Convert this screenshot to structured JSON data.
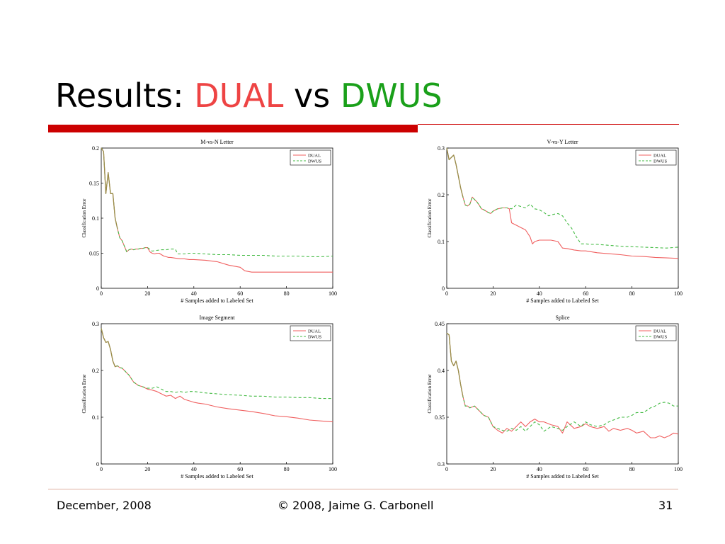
{
  "slide": {
    "title_prefix": "Results: ",
    "title_dual": "DUAL",
    "title_vs": " vs ",
    "title_dwus": "DWUS",
    "title_dual_color": "#ee4444",
    "title_dwus_color": "#1aa01a"
  },
  "footer": {
    "date": "December, 2008",
    "copyright": "© 2008, Jaime G. Carbonell",
    "page": "31"
  },
  "chart_data": [
    {
      "type": "line",
      "title": "M-vs-N Letter",
      "xlabel": "# Samples added to Labeled Set",
      "ylabel": "Classification Error",
      "xlim": [
        0,
        100
      ],
      "ylim": [
        0,
        0.2
      ],
      "xticks": [
        "0",
        "20",
        "40",
        "60",
        "80",
        "100"
      ],
      "yticks": [
        "0",
        "0.05",
        "0.1",
        "0.15",
        "0.2"
      ],
      "legend_position": "top-right",
      "series": [
        {
          "name": "DUAL",
          "color": "#f06060",
          "dash": "solid",
          "x": [
            0,
            1,
            2,
            3,
            4,
            5,
            6,
            7,
            8,
            9,
            10,
            11,
            12,
            13,
            14,
            15,
            16,
            17,
            18,
            19,
            20,
            21,
            22,
            23,
            24,
            25,
            26,
            27,
            28,
            29,
            30,
            32,
            34,
            36,
            38,
            40,
            45,
            50,
            55,
            60,
            62,
            65,
            70,
            75,
            80,
            85,
            90,
            95,
            100
          ],
          "y": [
            0.2,
            0.195,
            0.135,
            0.165,
            0.135,
            0.135,
            0.1,
            0.085,
            0.072,
            0.068,
            0.06,
            0.052,
            0.055,
            0.056,
            0.055,
            0.056,
            0.056,
            0.057,
            0.057,
            0.058,
            0.058,
            0.052,
            0.05,
            0.049,
            0.05,
            0.05,
            0.048,
            0.046,
            0.045,
            0.044,
            0.044,
            0.043,
            0.042,
            0.042,
            0.041,
            0.041,
            0.04,
            0.038,
            0.033,
            0.03,
            0.025,
            0.023,
            0.023,
            0.023,
            0.023,
            0.023,
            0.023,
            0.023,
            0.023
          ]
        },
        {
          "name": "DWUS",
          "color": "#44bb44",
          "dash": "4,3",
          "x": [
            0,
            1,
            2,
            3,
            4,
            5,
            6,
            7,
            8,
            9,
            10,
            11,
            12,
            13,
            14,
            15,
            16,
            17,
            18,
            19,
            20,
            22,
            24,
            26,
            28,
            30,
            32,
            33,
            34,
            36,
            38,
            40,
            45,
            50,
            55,
            60,
            65,
            70,
            75,
            80,
            85,
            90,
            95,
            100
          ],
          "y": [
            0.2,
            0.195,
            0.135,
            0.165,
            0.135,
            0.135,
            0.1,
            0.085,
            0.072,
            0.068,
            0.06,
            0.052,
            0.055,
            0.056,
            0.055,
            0.056,
            0.056,
            0.057,
            0.057,
            0.058,
            0.058,
            0.053,
            0.054,
            0.055,
            0.055,
            0.056,
            0.056,
            0.049,
            0.049,
            0.049,
            0.05,
            0.05,
            0.049,
            0.048,
            0.048,
            0.047,
            0.047,
            0.047,
            0.046,
            0.046,
            0.046,
            0.045,
            0.045,
            0.046
          ]
        }
      ]
    },
    {
      "type": "line",
      "title": "V-vs-Y Letter",
      "xlabel": "# Samples added to Labeled Set",
      "ylabel": "Classification Error",
      "xlim": [
        0,
        100
      ],
      "ylim": [
        0,
        0.3
      ],
      "xticks": [
        "0",
        "20",
        "40",
        "60",
        "80",
        "100"
      ],
      "yticks": [
        "0",
        "0.1",
        "0.2",
        "0.3"
      ],
      "legend_position": "top-right",
      "series": [
        {
          "name": "DUAL",
          "color": "#f06060",
          "dash": "solid",
          "x": [
            0,
            1,
            2,
            3,
            4,
            5,
            6,
            7,
            8,
            9,
            10,
            11,
            12,
            13,
            14,
            15,
            16,
            17,
            18,
            19,
            20,
            22,
            24,
            26,
            27,
            28,
            30,
            32,
            34,
            36,
            37,
            38,
            40,
            42,
            45,
            48,
            50,
            52,
            55,
            58,
            60,
            65,
            70,
            75,
            80,
            85,
            90,
            95,
            100
          ],
          "y": [
            0.3,
            0.275,
            0.28,
            0.285,
            0.265,
            0.24,
            0.215,
            0.195,
            0.178,
            0.176,
            0.18,
            0.195,
            0.19,
            0.185,
            0.178,
            0.17,
            0.168,
            0.165,
            0.162,
            0.16,
            0.165,
            0.17,
            0.172,
            0.172,
            0.17,
            0.14,
            0.135,
            0.13,
            0.125,
            0.11,
            0.095,
            0.1,
            0.103,
            0.103,
            0.103,
            0.1,
            0.086,
            0.085,
            0.082,
            0.08,
            0.08,
            0.076,
            0.074,
            0.072,
            0.069,
            0.068,
            0.066,
            0.065,
            0.064
          ]
        },
        {
          "name": "DWUS",
          "color": "#44bb44",
          "dash": "4,3",
          "x": [
            0,
            1,
            2,
            3,
            4,
            5,
            6,
            7,
            8,
            9,
            10,
            11,
            12,
            13,
            14,
            15,
            16,
            17,
            18,
            19,
            20,
            22,
            24,
            26,
            28,
            30,
            32,
            34,
            36,
            38,
            40,
            42,
            44,
            46,
            48,
            50,
            52,
            54,
            56,
            58,
            60,
            62,
            65,
            70,
            75,
            80,
            85,
            90,
            95,
            100
          ],
          "y": [
            0.3,
            0.275,
            0.28,
            0.285,
            0.265,
            0.24,
            0.215,
            0.195,
            0.178,
            0.176,
            0.18,
            0.195,
            0.19,
            0.185,
            0.178,
            0.17,
            0.168,
            0.165,
            0.162,
            0.16,
            0.165,
            0.17,
            0.172,
            0.172,
            0.17,
            0.178,
            0.175,
            0.172,
            0.18,
            0.17,
            0.168,
            0.162,
            0.155,
            0.158,
            0.16,
            0.155,
            0.14,
            0.128,
            0.11,
            0.095,
            0.095,
            0.094,
            0.094,
            0.092,
            0.09,
            0.089,
            0.088,
            0.087,
            0.086,
            0.088
          ]
        }
      ]
    },
    {
      "type": "line",
      "title": "Image Segment",
      "xlabel": "# Samples added to Labeled Set",
      "ylabel": "Classification Error",
      "xlim": [
        0,
        100
      ],
      "ylim": [
        0,
        0.3
      ],
      "xticks": [
        "0",
        "20",
        "40",
        "60",
        "80",
        "100"
      ],
      "yticks": [
        "0",
        "0.1",
        "0.2",
        "0.3"
      ],
      "legend_position": "top-right",
      "series": [
        {
          "name": "DUAL",
          "color": "#f06060",
          "dash": "solid",
          "x": [
            0,
            1,
            2,
            3,
            4,
            5,
            6,
            7,
            8,
            9,
            10,
            12,
            14,
            16,
            18,
            20,
            22,
            24,
            26,
            28,
            30,
            32,
            34,
            36,
            38,
            40,
            42,
            45,
            50,
            55,
            60,
            65,
            70,
            75,
            80,
            85,
            90,
            95,
            100
          ],
          "y": [
            0.29,
            0.27,
            0.26,
            0.262,
            0.245,
            0.22,
            0.208,
            0.21,
            0.206,
            0.205,
            0.2,
            0.19,
            0.175,
            0.168,
            0.165,
            0.16,
            0.158,
            0.155,
            0.15,
            0.145,
            0.147,
            0.14,
            0.145,
            0.138,
            0.135,
            0.132,
            0.13,
            0.128,
            0.122,
            0.118,
            0.115,
            0.112,
            0.108,
            0.103,
            0.101,
            0.098,
            0.094,
            0.092,
            0.09
          ]
        },
        {
          "name": "DWUS",
          "color": "#44bb44",
          "dash": "4,3",
          "x": [
            0,
            1,
            2,
            3,
            4,
            5,
            6,
            7,
            8,
            9,
            10,
            12,
            14,
            16,
            18,
            20,
            22,
            24,
            26,
            28,
            30,
            32,
            34,
            36,
            38,
            40,
            45,
            50,
            55,
            60,
            65,
            70,
            75,
            80,
            85,
            90,
            95,
            100
          ],
          "y": [
            0.29,
            0.27,
            0.26,
            0.262,
            0.245,
            0.22,
            0.208,
            0.21,
            0.206,
            0.205,
            0.2,
            0.19,
            0.175,
            0.168,
            0.165,
            0.162,
            0.162,
            0.165,
            0.16,
            0.155,
            0.155,
            0.153,
            0.155,
            0.153,
            0.155,
            0.155,
            0.152,
            0.15,
            0.148,
            0.147,
            0.145,
            0.145,
            0.143,
            0.143,
            0.142,
            0.142,
            0.14,
            0.14
          ]
        }
      ]
    },
    {
      "type": "line",
      "title": "Splice",
      "xlabel": "# Samples added to Labeled Set",
      "ylabel": "Classification Error",
      "xlim": [
        0,
        100
      ],
      "ylim": [
        0.3,
        0.45
      ],
      "xticks": [
        "0",
        "20",
        "40",
        "60",
        "80",
        "100"
      ],
      "yticks": [
        "0.3",
        "0.35",
        "0.4",
        "0.45"
      ],
      "legend_position": "top-right",
      "series": [
        {
          "name": "DUAL",
          "color": "#f06060",
          "dash": "solid",
          "x": [
            0,
            1,
            2,
            3,
            4,
            5,
            6,
            7,
            8,
            9,
            10,
            12,
            14,
            16,
            18,
            20,
            22,
            24,
            26,
            28,
            30,
            32,
            34,
            36,
            38,
            40,
            42,
            45,
            48,
            50,
            52,
            55,
            58,
            60,
            62,
            65,
            68,
            70,
            72,
            75,
            78,
            80,
            82,
            85,
            88,
            90,
            92,
            94,
            96,
            98,
            100
          ],
          "y": [
            0.44,
            0.438,
            0.41,
            0.405,
            0.41,
            0.4,
            0.385,
            0.372,
            0.362,
            0.362,
            0.36,
            0.362,
            0.357,
            0.352,
            0.35,
            0.34,
            0.336,
            0.333,
            0.338,
            0.335,
            0.34,
            0.345,
            0.34,
            0.345,
            0.348,
            0.345,
            0.345,
            0.342,
            0.34,
            0.333,
            0.345,
            0.338,
            0.34,
            0.343,
            0.34,
            0.338,
            0.34,
            0.335,
            0.338,
            0.336,
            0.338,
            0.336,
            0.333,
            0.335,
            0.328,
            0.328,
            0.33,
            0.328,
            0.33,
            0.333,
            0.332
          ]
        },
        {
          "name": "DWUS",
          "color": "#44bb44",
          "dash": "4,3",
          "x": [
            0,
            1,
            2,
            3,
            4,
            5,
            6,
            7,
            8,
            9,
            10,
            12,
            14,
            16,
            18,
            20,
            22,
            24,
            26,
            28,
            30,
            32,
            34,
            36,
            38,
            40,
            42,
            45,
            48,
            50,
            52,
            55,
            58,
            60,
            62,
            65,
            68,
            70,
            72,
            75,
            78,
            80,
            82,
            85,
            88,
            90,
            92,
            94,
            96,
            98,
            100
          ],
          "y": [
            0.44,
            0.438,
            0.41,
            0.405,
            0.41,
            0.4,
            0.385,
            0.372,
            0.362,
            0.362,
            0.36,
            0.362,
            0.357,
            0.352,
            0.35,
            0.34,
            0.338,
            0.336,
            0.335,
            0.338,
            0.336,
            0.34,
            0.335,
            0.34,
            0.345,
            0.342,
            0.335,
            0.34,
            0.338,
            0.336,
            0.34,
            0.345,
            0.34,
            0.345,
            0.342,
            0.34,
            0.342,
            0.345,
            0.347,
            0.35,
            0.35,
            0.352,
            0.355,
            0.355,
            0.36,
            0.362,
            0.365,
            0.366,
            0.365,
            0.362,
            0.362
          ]
        }
      ]
    }
  ]
}
